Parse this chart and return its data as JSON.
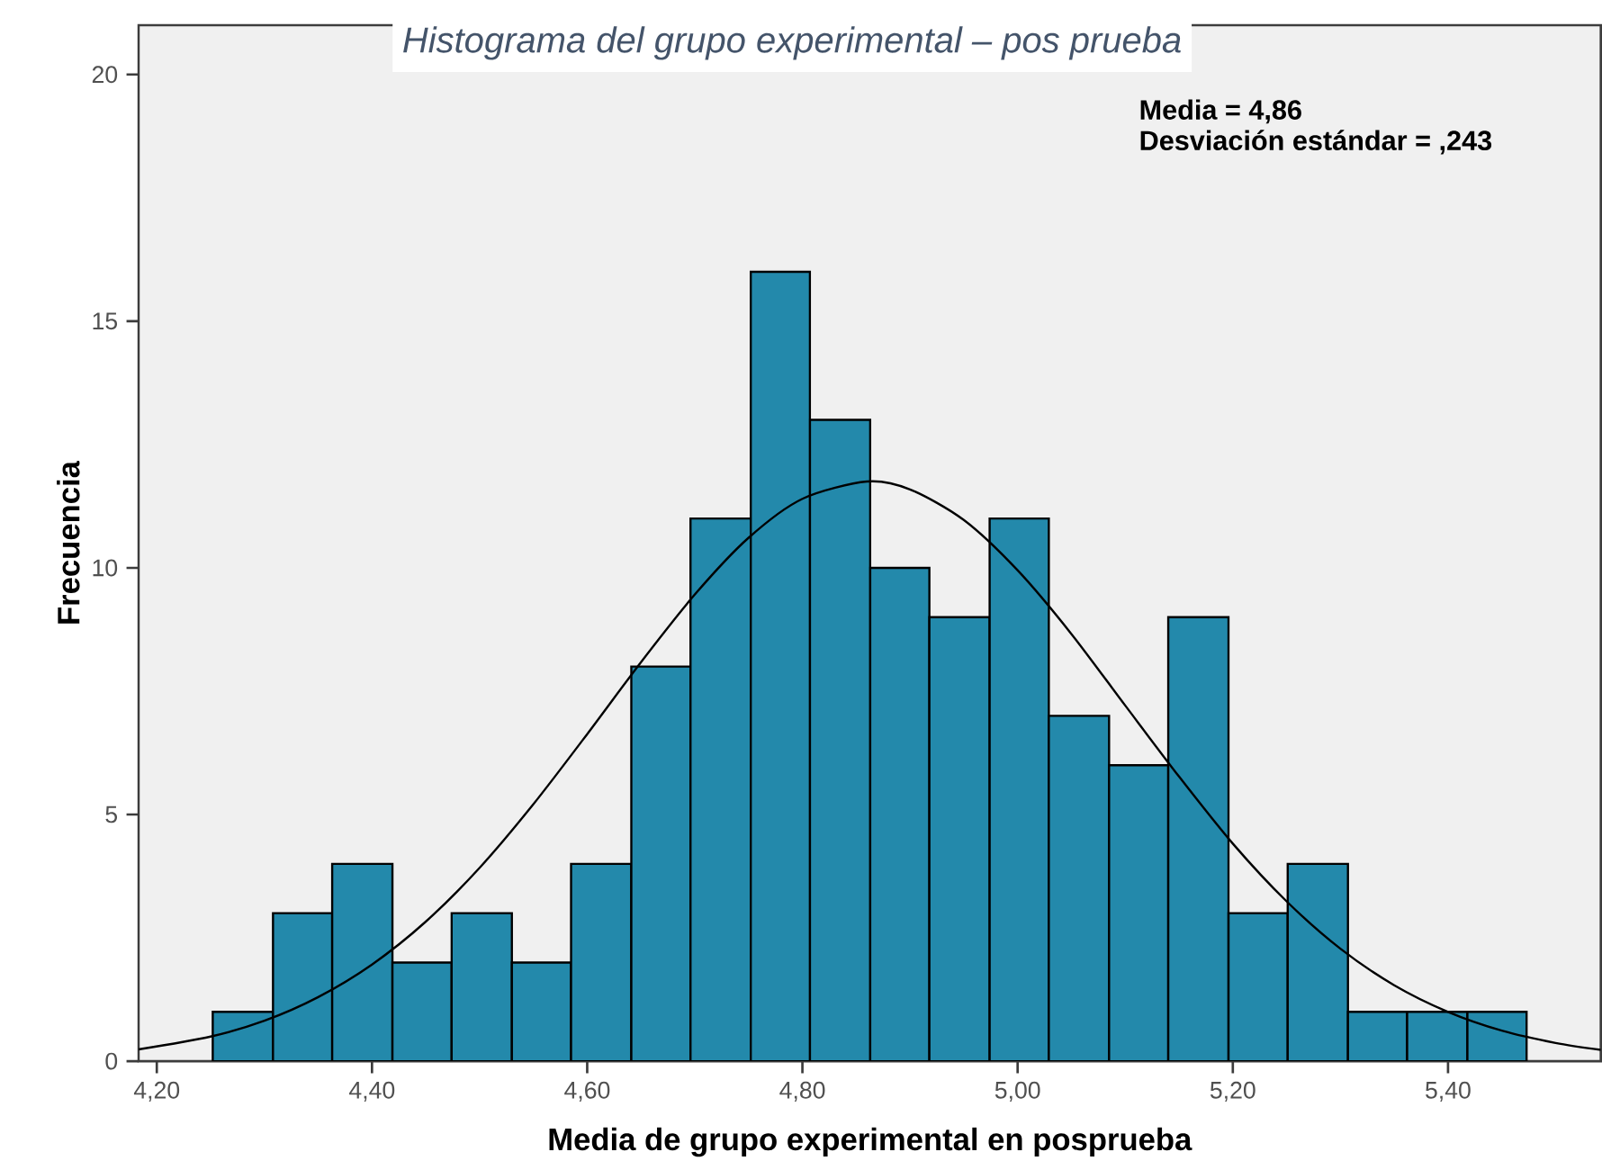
{
  "chart_data": {
    "type": "histogram",
    "title": "Histograma del grupo experimental – pos prueba",
    "xlabel": "Media de grupo experimental en posprueba",
    "ylabel": "Frecuencia",
    "annotations": [
      "Media = 4,86",
      "Desviación estándar = ,243"
    ],
    "series": [
      {
        "color": "#2389ab",
        "bins": [
          4.252,
          4.308,
          4.363,
          4.419,
          4.474,
          4.53,
          4.585,
          4.641,
          4.696,
          4.752,
          4.807,
          4.863,
          4.918,
          4.974,
          5.029,
          5.085,
          5.14,
          5.196,
          5.251,
          5.307,
          5.362,
          5.418,
          5.473
        ],
        "values": [
          1,
          3,
          4,
          2,
          3,
          2,
          4,
          8,
          11,
          16,
          13,
          10,
          9,
          11,
          7,
          6,
          9,
          3,
          4,
          1,
          1,
          1
        ]
      },
      {
        "type": "line",
        "color": "#000000",
        "x": [
          4.183,
          4.25,
          4.3,
          4.35,
          4.4,
          4.45,
          4.5,
          4.55,
          4.6,
          4.65,
          4.7,
          4.75,
          4.8,
          4.86,
          4.9,
          4.95,
          5.0,
          5.05,
          5.1,
          5.15,
          5.2,
          5.25,
          5.3,
          5.35,
          5.4,
          5.45,
          5.5,
          5.542
        ],
        "values": [
          0.24,
          0.5,
          0.82,
          1.3,
          1.96,
          2.83,
          3.92,
          5.21,
          6.63,
          8.09,
          9.46,
          10.61,
          11.4,
          11.75,
          11.59,
          10.97,
          9.95,
          8.66,
          7.21,
          5.77,
          4.41,
          3.24,
          2.28,
          1.54,
          1.0,
          0.62,
          0.37,
          0.23
        ]
      }
    ],
    "xlim": [
      4.183,
      5.542
    ],
    "ylim": [
      0,
      21
    ],
    "xticks": [
      {
        "value": 4.2,
        "label": "4,20"
      },
      {
        "value": 4.4,
        "label": "4,40"
      },
      {
        "value": 4.6,
        "label": "4,60"
      },
      {
        "value": 4.8,
        "label": "4,80"
      },
      {
        "value": 5.0,
        "label": "5,00"
      },
      {
        "value": 5.2,
        "label": "5,20"
      },
      {
        "value": 5.4,
        "label": "5,40"
      }
    ],
    "yticks": [
      0,
      5,
      10,
      15,
      20
    ],
    "grid": false
  }
}
